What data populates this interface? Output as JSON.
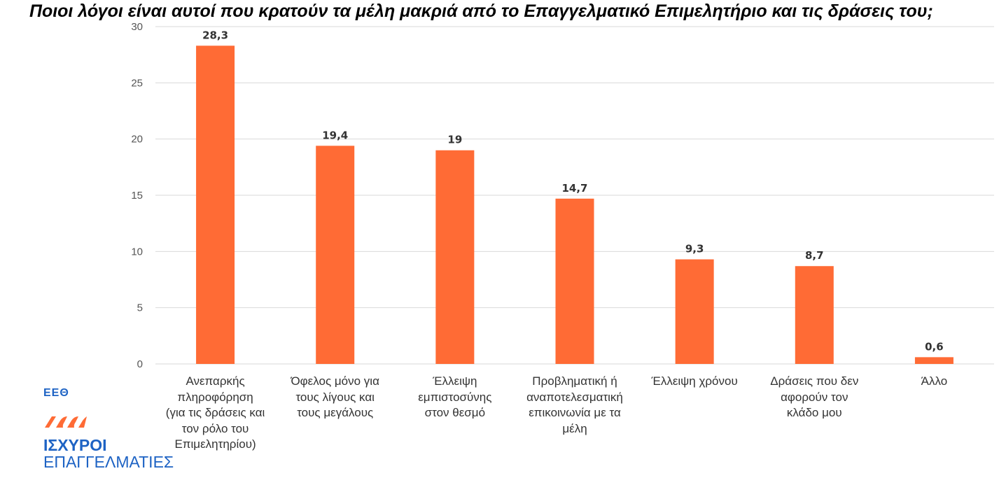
{
  "chart_data": {
    "type": "bar",
    "title": "Ποιοι λόγοι είναι αυτοί που κρατούν τα μέλη μακριά από το Επαγγελματικό Επιμελητήριο και τις δράσεις του;",
    "categories": [
      "Ανεπαρκής πληροφόρηση (για τις δράσεις και τον ρόλο του Επιμελητηρίου)",
      "Όφελος μόνο για τους λίγους και τους μεγάλους",
      "Έλλειψη εμπιστοσύνης στον θεσμό",
      "Προβληματική ή αναποτελεσματική επικοινωνία με τα μέλη",
      "Έλλειψη χρόνου",
      "Δράσεις που δεν αφορούν τον κλάδο μου",
      "Άλλο"
    ],
    "category_lines": [
      [
        "Ανεπαρκής",
        "πληροφόρηση",
        "(για τις δράσεις και",
        "τον ρόλο του",
        "Επιμελητηρίου)"
      ],
      [
        "Όφελος μόνο για",
        "τους λίγους και",
        "τους μεγάλους"
      ],
      [
        "Έλλειψη",
        "εμπιστοσύνης",
        "στον θεσμό"
      ],
      [
        "Προβληματική ή",
        "αναποτελεσματική",
        "επικοινωνία με τα",
        "μέλη"
      ],
      [
        "Έλλειψη χρόνου"
      ],
      [
        "Δράσεις που δεν",
        "αφορούν τον",
        "κλάδο μου"
      ],
      [
        "Άλλο"
      ]
    ],
    "values": [
      28.3,
      19.4,
      19,
      14.7,
      9.3,
      8.7,
      0.6
    ],
    "value_labels": [
      "28,3",
      "19,4",
      "19",
      "14,7",
      "9,3",
      "8,7",
      "0,6"
    ],
    "ylim": [
      0,
      30
    ],
    "yticks": [
      0,
      5,
      10,
      15,
      20,
      25,
      30
    ],
    "grid": true,
    "xlabel": "",
    "ylabel": "",
    "bar_color": "#ff6b35"
  },
  "logo": {
    "short": "ΕΕΘ",
    "name_line1": "ΙΣΧΥΡΟΙ",
    "name_line2": "ΕΠΑΓΓΕΛΜΑΤΙΕΣ"
  }
}
